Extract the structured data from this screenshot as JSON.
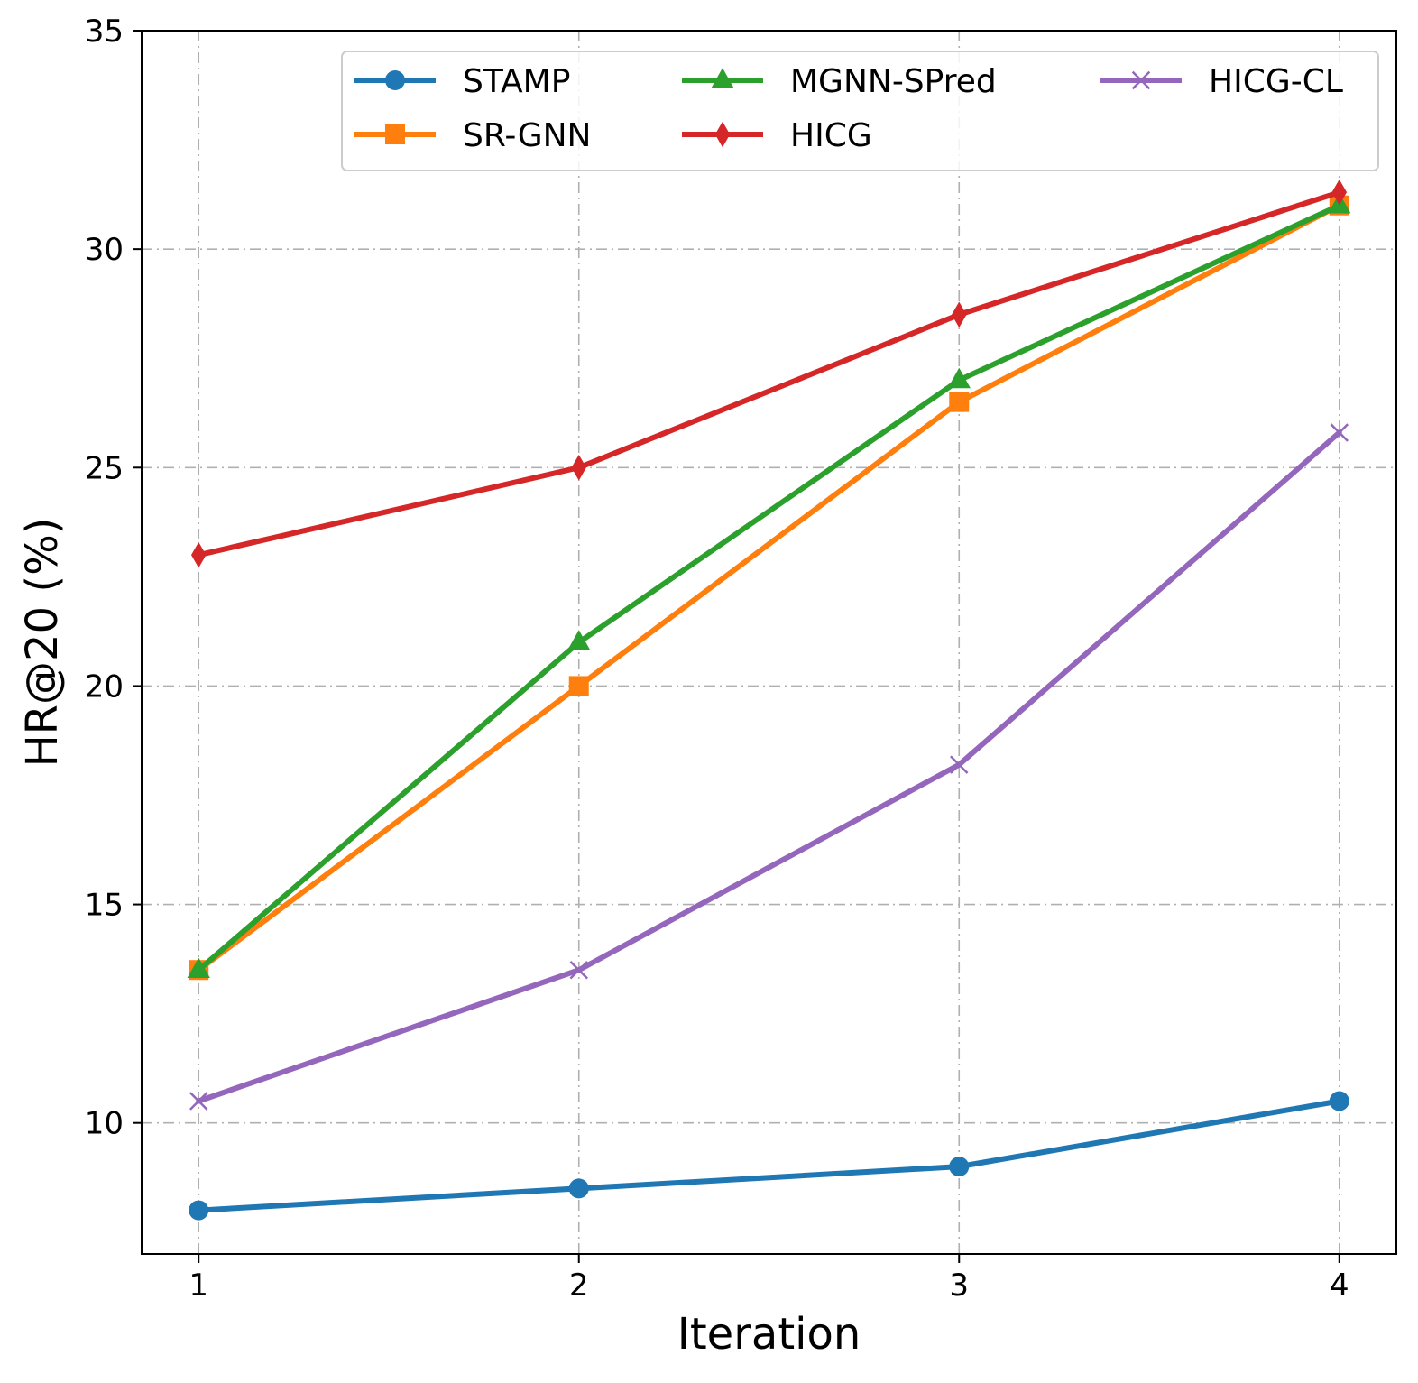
{
  "chart_data": {
    "type": "line",
    "title": "",
    "xlabel": "Iteration",
    "ylabel": "HR@20 (%)",
    "x": [
      1,
      2,
      3,
      4
    ],
    "xlim": [
      0.85,
      4.15
    ],
    "ylim": [
      7,
      35
    ],
    "xticks": [
      1,
      2,
      3,
      4
    ],
    "yticks": [
      10,
      15,
      20,
      25,
      30,
      35
    ],
    "grid": true,
    "legend_position": "top-right",
    "series": [
      {
        "name": "STAMP",
        "values": [
          8.0,
          8.5,
          9.0,
          10.5
        ],
        "color": "#1f77b4",
        "marker": "circle"
      },
      {
        "name": "SR-GNN",
        "values": [
          13.5,
          20.0,
          26.5,
          31.0
        ],
        "color": "#ff7f0e",
        "marker": "square"
      },
      {
        "name": "MGNN-SPred",
        "values": [
          13.5,
          21.0,
          27.0,
          31.0
        ],
        "color": "#2ca02c",
        "marker": "triangle"
      },
      {
        "name": "HICG",
        "values": [
          23.0,
          25.0,
          28.5,
          31.3
        ],
        "color": "#d62728",
        "marker": "diamond"
      },
      {
        "name": "HICG-CL",
        "values": [
          10.5,
          13.5,
          18.2,
          25.8
        ],
        "color": "#9467bd",
        "marker": "x"
      }
    ]
  }
}
